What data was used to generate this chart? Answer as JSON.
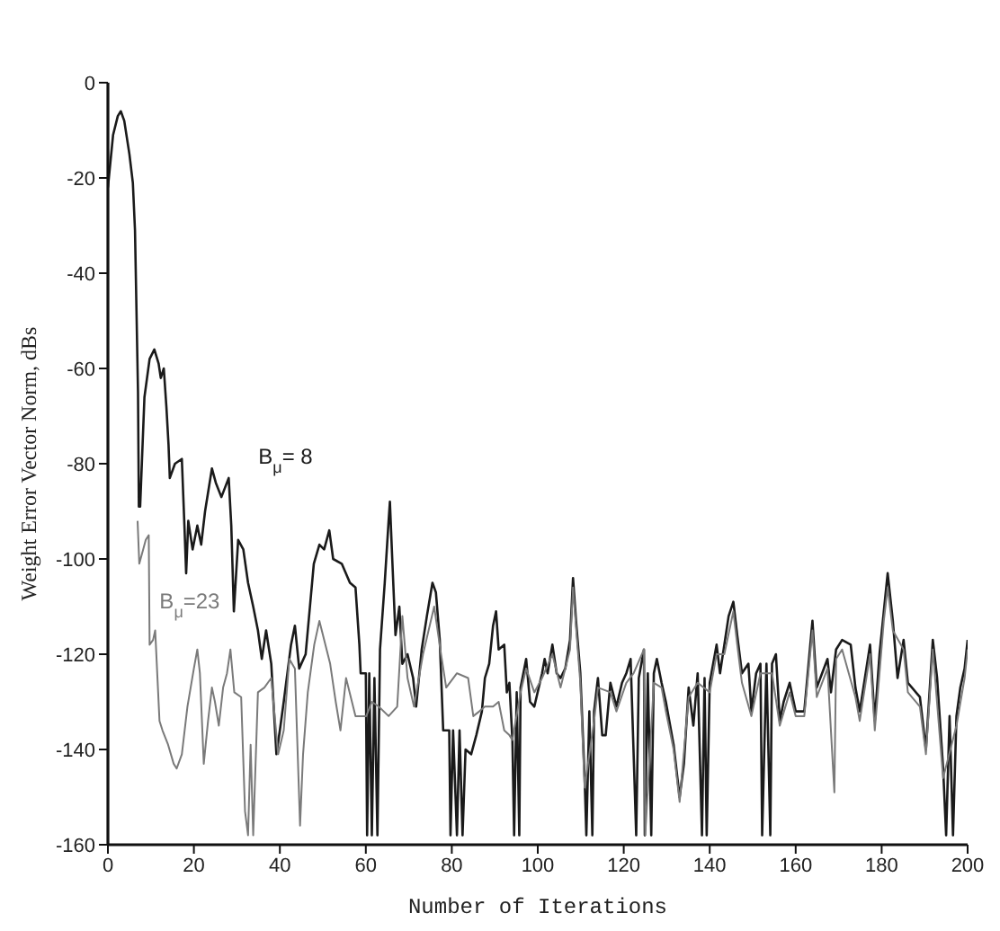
{
  "chart_data": {
    "type": "line",
    "xlabel": "Number of Iterations",
    "ylabel": "Weight Error Vector Norm, dBs",
    "xlim": [
      0,
      200
    ],
    "xticks": [
      0,
      20,
      40,
      60,
      80,
      100,
      120,
      140,
      160,
      180,
      200
    ],
    "ylim": [
      -160,
      0
    ],
    "yticks": [
      0,
      -20,
      -40,
      -60,
      -80,
      -100,
      -120,
      -140,
      -160
    ],
    "series": [
      {
        "name": "B$_{μ}$= 8",
        "color": "#1a1a1a",
        "x": [
          0,
          1.2,
          2.3,
          3,
          3.8,
          5,
          5.8,
          6.3,
          7,
          7.2,
          7.5,
          8.5,
          9.7,
          10.8,
          11.8,
          12.3,
          13,
          13.6,
          14.1,
          14.4,
          15.6,
          17.2,
          17.8,
          18.2,
          18.7,
          19.7,
          20.8,
          21.7,
          22.6,
          24.2,
          25.1,
          26.4,
          28.1,
          28.7,
          29.3,
          30.3,
          31.5,
          32.6,
          33.8,
          34.9,
          35.8,
          36.8,
          38,
          39.2,
          40,
          40.9,
          42.6,
          43.5,
          44.5,
          46,
          47.9,
          49.2,
          50.3,
          51.5,
          52.4,
          54.4,
          56.3,
          57.6,
          58.5,
          58.8,
          60,
          60.3,
          60.8,
          61.4,
          62,
          62.7,
          63.3,
          64.4,
          65.3,
          65.6,
          66.1,
          66.9,
          67.8,
          68.5,
          69.7,
          71,
          71.7,
          73,
          74.2,
          75.5,
          76.3,
          77.2,
          78,
          79.4,
          79.7,
          80.3,
          81.2,
          81.8,
          82.5,
          83.2,
          84.5,
          85.7,
          87,
          87.7,
          88.7,
          89.6,
          90.3,
          90.9,
          92.2,
          92.8,
          93.4,
          94.1,
          94.5,
          95.1,
          95.7,
          96,
          97.3,
          98.2,
          99.2,
          101,
          101.6,
          102.3,
          103.4,
          104.4,
          105.3,
          106.4,
          107.5,
          108.2,
          108.9,
          109.9,
          110.9,
          111.3,
          112,
          112.7,
          113.1,
          114,
          115,
          115.8,
          116.9,
          118.3,
          119.6,
          120.6,
          121.6,
          122.9,
          123.5,
          124.7,
          124.9,
          125.6,
          126.4,
          127,
          127.7,
          128.8,
          129.8,
          131.6,
          133,
          134,
          135.1,
          136.2,
          137.2,
          138.2,
          138.8,
          139.3,
          140,
          141.6,
          142.4,
          143.4,
          144.4,
          145.5,
          146.4,
          147.5,
          149,
          149.7,
          150.8,
          151.8,
          152.2,
          153.2,
          154.1,
          154.5,
          155.4,
          156.3,
          157.2,
          158.6,
          160,
          162,
          163.9,
          164.9,
          167.4,
          168.2,
          169.4,
          170.8,
          172.8,
          173.9,
          174.9,
          177.3,
          178.4,
          179.5,
          180.5,
          181.4,
          182.6,
          183.7,
          185.1,
          186.1,
          188.9,
          190.3,
          191.9,
          192.9,
          194.3,
          195,
          195.8,
          196.6,
          197.4,
          198.3,
          199.3,
          200
        ],
        "values": [
          -22,
          -11,
          -7,
          -6,
          -8,
          -15,
          -21,
          -31,
          -65,
          -89,
          -89,
          -66,
          -58,
          -56,
          -59,
          -62,
          -60,
          -68,
          -76,
          -83,
          -80,
          -79,
          -93,
          -103,
          -92,
          -98,
          -93,
          -97,
          -90,
          -81,
          -84,
          -87,
          -83,
          -93,
          -111,
          -96,
          -98,
          -105,
          -110,
          -115,
          -121,
          -115,
          -122,
          -141,
          -136,
          -130,
          -118,
          -114,
          -123,
          -120,
          -101,
          -97,
          -98,
          -94,
          -100,
          -101,
          -105,
          -106,
          -118,
          -124,
          -124,
          -158,
          -124,
          -158,
          -125,
          -158,
          -119,
          -105,
          -92,
          -88,
          -99,
          -116,
          -110,
          -122,
          -120,
          -125,
          -131,
          -119,
          -112,
          -105,
          -107,
          -117,
          -136,
          -136,
          -158,
          -136,
          -158,
          -136,
          -158,
          -140,
          -141,
          -137,
          -132,
          -125,
          -122,
          -114,
          -111,
          -119,
          -118,
          -128,
          -126,
          -138,
          -158,
          -128,
          -158,
          -127,
          -121,
          -130,
          -131,
          -124,
          -121,
          -124,
          -118,
          -124,
          -125,
          -123,
          -117,
          -104,
          -113,
          -124,
          -146,
          -158,
          -132,
          -158,
          -132,
          -125,
          -137,
          -137,
          -126,
          -131,
          -126,
          -124,
          -121,
          -158,
          -125,
          -119,
          -158,
          -124,
          -158,
          -124,
          -121,
          -126,
          -130,
          -139,
          -150,
          -143,
          -127,
          -135,
          -124,
          -158,
          -125,
          -158,
          -126,
          -118,
          -124,
          -118,
          -112,
          -109,
          -116,
          -124,
          -122,
          -132,
          -124,
          -122,
          -158,
          -122,
          -158,
          -122,
          -120,
          -134,
          -130,
          -126,
          -132,
          -132,
          -113,
          -127,
          -121,
          -128,
          -119,
          -117,
          -118,
          -127,
          -132,
          -118,
          -134,
          -120,
          -111,
          -103,
          -113,
          -125,
          -117,
          -126,
          -129,
          -140,
          -117,
          -125,
          -144,
          -158,
          -133,
          -158,
          -133,
          -127,
          -123,
          -117
        ]
      },
      {
        "name": "B$_{μ}$=23",
        "color": "#7a7a7a",
        "x": [
          6.9,
          7.3,
          8.2,
          8.8,
          9.5,
          9.7,
          10.5,
          11,
          12,
          12.7,
          14,
          15.3,
          16,
          17.2,
          18.5,
          20,
          20.8,
          21.4,
          22.3,
          23.3,
          24.2,
          24.9,
          25.8,
          26.8,
          27.7,
          28.5,
          29.4,
          31,
          31.9,
          32.6,
          33.2,
          33.8,
          34.9,
          36.4,
          38,
          39.6,
          40.9,
          42.2,
          43.5,
          44.7,
          45.4,
          46.5,
          48,
          49.2,
          51.7,
          53,
          54.1,
          55.4,
          57.6,
          60.1,
          61.4,
          63,
          65.3,
          67.3,
          68.5,
          69.7,
          71.2,
          73.3,
          75.9,
          77.5,
          78.7,
          81.2,
          83.8,
          85,
          86.4,
          87.7,
          89.6,
          90.9,
          92.2,
          93.4,
          94.1,
          96,
          97.3,
          99.2,
          101,
          103.4,
          105.3,
          107.5,
          108.2,
          109.9,
          110.9,
          113.1,
          114,
          116.9,
          118.3,
          120.6,
          122.3,
          124.7,
          125,
          127,
          128.8,
          129.8,
          131.6,
          133,
          135.1,
          137.2,
          140,
          141.6,
          143.4,
          145.5,
          146.4,
          147.5,
          149.7,
          151.8,
          154.5,
          156.3,
          158.6,
          160,
          162,
          163.9,
          164.9,
          167.4,
          169,
          169.4,
          170.8,
          173.9,
          174.9,
          177.3,
          178.4,
          180.5,
          181.4,
          182.6,
          185.1,
          186.1,
          188.9,
          190.3,
          191.9,
          194.3,
          197.4,
          199.3,
          200
        ],
        "values": [
          -92,
          -101,
          -98,
          -96,
          -95,
          -118,
          -117,
          -115,
          -134,
          -136,
          -139,
          -143,
          -144,
          -141,
          -131,
          -123,
          -119,
          -124,
          -143,
          -134,
          -127,
          -130,
          -135,
          -127,
          -124,
          -119,
          -128,
          -129,
          -153,
          -158,
          -139,
          -158,
          -128,
          -127,
          -125,
          -141,
          -136,
          -121,
          -123,
          -156,
          -141,
          -128,
          -118,
          -113,
          -122,
          -130,
          -136,
          -125,
          -133,
          -133,
          -130,
          -131,
          -133,
          -131,
          -112,
          -125,
          -131,
          -120,
          -110,
          -120,
          -127,
          -124,
          -125,
          -133,
          -132,
          -131,
          -131,
          -130,
          -136,
          -137,
          -138,
          -128,
          -123,
          -128,
          -125,
          -120,
          -127,
          -119,
          -106,
          -126,
          -148,
          -134,
          -127,
          -128,
          -132,
          -126,
          -124,
          -119,
          -158,
          -126,
          -127,
          -132,
          -140,
          -151,
          -129,
          -126,
          -128,
          -120,
          -120,
          -111,
          -118,
          -126,
          -133,
          -124,
          -124,
          -135,
          -128,
          -133,
          -133,
          -115,
          -129,
          -123,
          -149,
          -121,
          -119,
          -129,
          -134,
          -120,
          -136,
          -113,
          -106,
          -115,
          -119,
          -128,
          -131,
          -141,
          -119,
          -146,
          -135,
          -125,
          -119
        ]
      }
    ]
  }
}
